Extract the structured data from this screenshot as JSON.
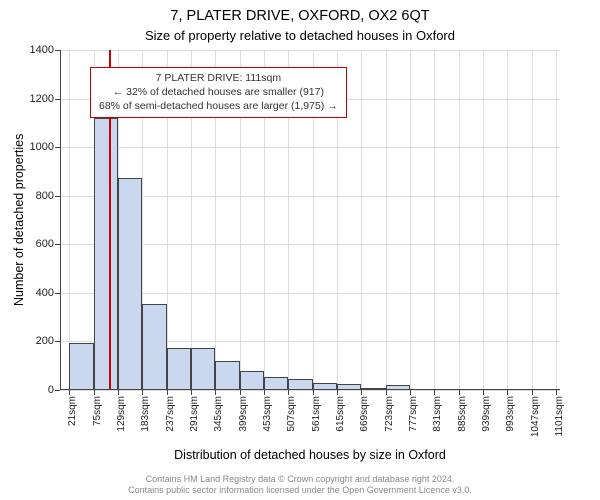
{
  "title": {
    "main": "7, PLATER DRIVE, OXFORD, OX2 6QT",
    "sub": "Size of property relative to detached houses in Oxford",
    "fontsize_main": 14.5,
    "fontsize_sub": 13
  },
  "chart": {
    "type": "histogram",
    "background_color": "#ffffff",
    "grid_color": "#dddddd",
    "axis_color": "#444444",
    "bar_fill": "#c9d8ef",
    "bar_border": "#444444",
    "marker_color": "#cc0000",
    "ylabel": "Number of detached properties",
    "xlabel": "Distribution of detached houses by size in Oxford",
    "label_fontsize": 12.5,
    "ylim": [
      0,
      1400
    ],
    "ytick_step": 200,
    "xlim_sqm": [
      0,
      1110
    ],
    "x_tick_start": 21,
    "x_tick_step": 54,
    "x_ticks_count": 21,
    "x_tick_unit": "sqm",
    "bin_width_sqm": 54,
    "bins_start_sqm": 21,
    "values": [
      195,
      1120,
      875,
      355,
      175,
      175,
      120,
      80,
      55,
      45,
      30,
      25,
      10,
      20,
      5,
      0,
      0,
      0,
      0,
      0
    ],
    "marker_at_sqm": 111,
    "tick_fontsize": 11
  },
  "annotation": {
    "line1": "7 PLATER DRIVE: 111sqm",
    "line2": "← 32% of detached houses are smaller (917)",
    "line3": "68% of semi-detached houses are larger (1,975) →",
    "border_color": "#cc0000",
    "fontsize": 10.5
  },
  "footer": {
    "line1": "Contains HM Land Registry data © Crown copyright and database right 2024.",
    "line2": "Contains public sector information licensed under the Open Government Licence v3.0.",
    "color": "#888888",
    "fontsize": 9
  }
}
